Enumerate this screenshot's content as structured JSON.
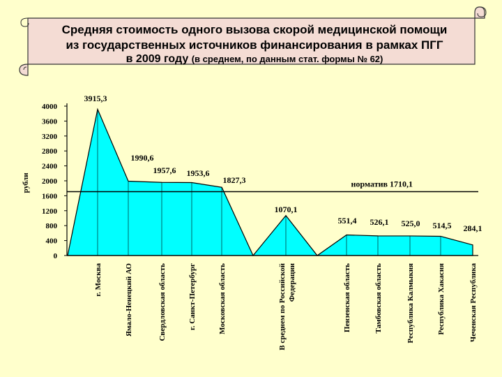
{
  "header": {
    "title_line1": "Средняя стоимость одного вызова скорой медицинской помощи",
    "title_line2": "из государственных источников финансирования в рамках ПГГ",
    "title_line3": "в 2009 году",
    "title_line3_sub": "(в среднем, по данным стат. формы № 62)"
  },
  "colors": {
    "background": "#ffffcc",
    "banner": "#f4dcd4",
    "area_fill": "#00ffff",
    "outline": "#000000"
  },
  "chart_data": {
    "type": "area",
    "title": "Средняя стоимость одного вызова скорой медицинской помощи из государственных источников финансирования в рамках ПГГ в 2009 году (в среднем, по данным стат. формы № 62)",
    "ylabel": "рубли",
    "ylim": [
      0,
      4000
    ],
    "yticks": [
      0,
      400,
      800,
      1200,
      1600,
      2000,
      2400,
      2800,
      3200,
      3600,
      4000
    ],
    "grid": false,
    "legend": "none",
    "categories": [
      "г. Москва",
      "Ямало-Ненецкий АО",
      "Свердловская область",
      "г. Санкт-Петербург",
      "Московская область",
      "В среднем по Российской Федерации",
      "Пензенская область",
      "Тамбовская область",
      "Республика Калмыкия",
      "Республика Хакасия",
      "Чеченская Республика"
    ],
    "values": [
      3915.3,
      1990.6,
      1957.6,
      1953.6,
      1827.3,
      1070.1,
      551.4,
      526.1,
      525.0,
      514.5,
      284.1
    ],
    "value_labels": [
      "3915,3",
      "1990,6",
      "1957,6",
      "1953,6",
      "1827,3",
      "1070,1",
      "551,4",
      "526,1",
      "525,0",
      "514,5",
      "284,1"
    ],
    "reference_line": {
      "value": 1710.1,
      "label": "норматив 1710,1"
    }
  }
}
